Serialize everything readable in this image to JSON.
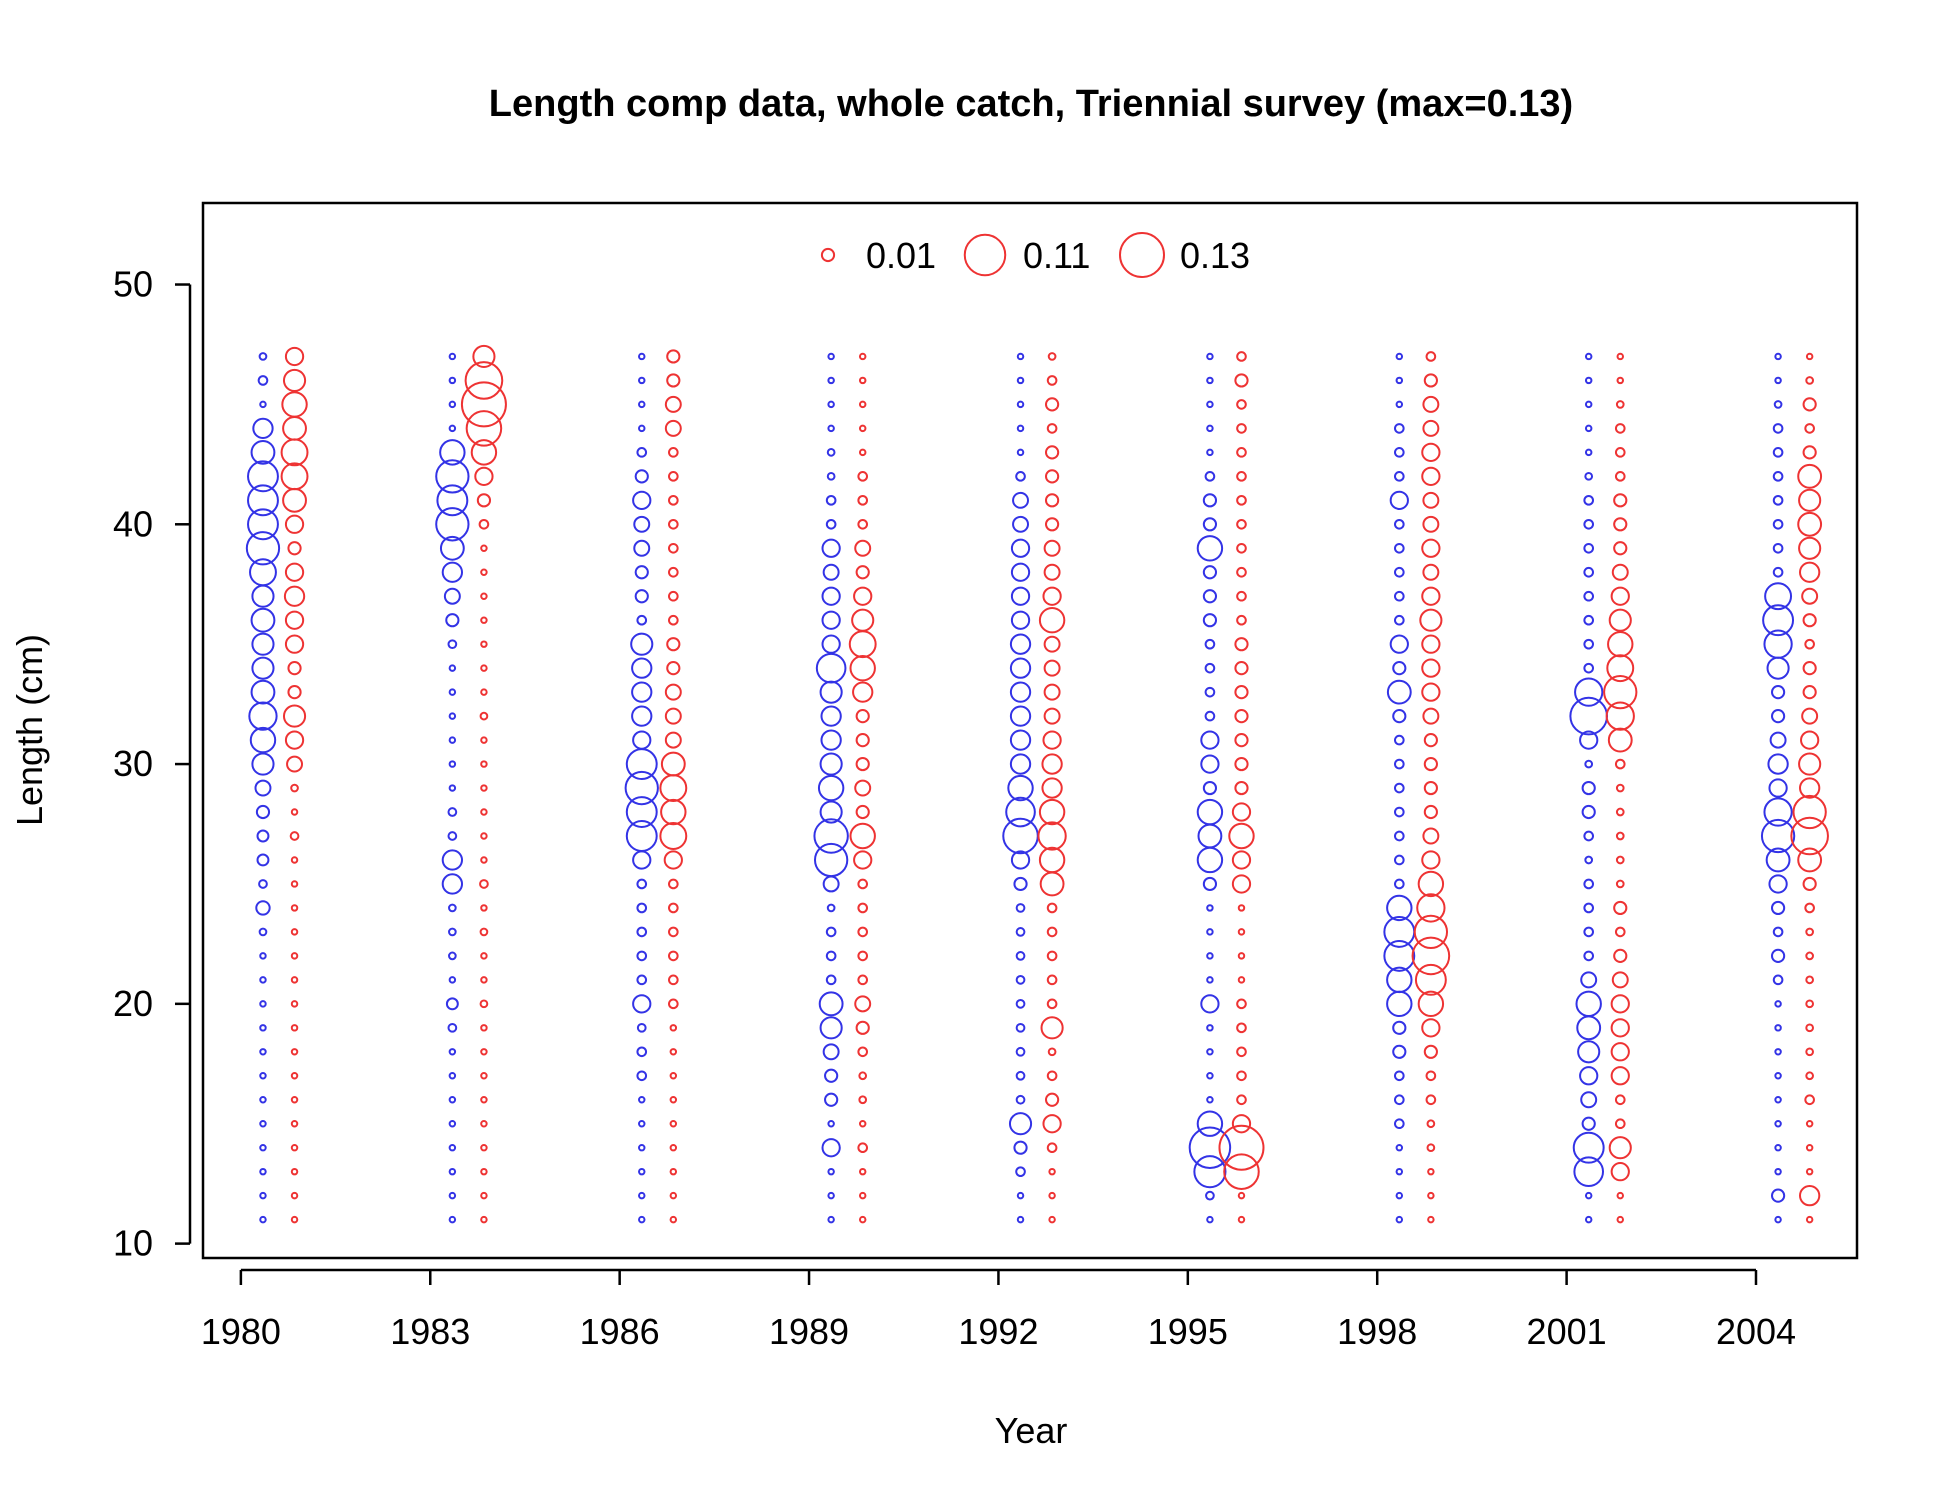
{
  "chart_data": {
    "type": "scatter",
    "subtype": "bubble",
    "title": "Length comp data, whole catch, Triennial survey (max=0.13)",
    "xlabel": "Year",
    "ylabel": "Length (cm)",
    "xlim": [
      1979.4,
      2005.6
    ],
    "ylim": [
      9.4,
      53.4
    ],
    "x_ticks": [
      "1980",
      "1983",
      "1986",
      "1989",
      "1992",
      "1995",
      "1998",
      "2001",
      "2004"
    ],
    "y_ticks": [
      "10",
      "20",
      "30",
      "40",
      "50"
    ],
    "grid": false,
    "legend_position": "top-center",
    "legend": [
      {
        "label": "0.01",
        "value": 0.01
      },
      {
        "label": "0.11",
        "value": 0.11
      },
      {
        "label": "0.13",
        "value": 0.13
      }
    ],
    "series_colors": [
      "#3333e6",
      "#ee3333"
    ],
    "lengths": [
      11,
      12,
      13,
      14,
      15,
      16,
      17,
      18,
      19,
      20,
      21,
      22,
      23,
      24,
      25,
      26,
      27,
      28,
      29,
      30,
      31,
      32,
      33,
      34,
      35,
      36,
      37,
      38,
      39,
      40,
      41,
      42,
      43,
      44,
      45,
      46,
      47
    ],
    "years": [
      1980,
      1983,
      1986,
      1989,
      1992,
      1995,
      1998,
      2001,
      2004
    ],
    "series": [
      {
        "x_offset": 0.35,
        "color": "#3333e6",
        "proportions": [
          [
            0.002,
            0.002,
            0.002,
            0.002,
            0.002,
            0.002,
            0.002,
            0.002,
            0.002,
            0.002,
            0.002,
            0.002,
            0.003,
            0.012,
            0.004,
            0.008,
            0.008,
            0.01,
            0.015,
            0.03,
            0.04,
            0.05,
            0.035,
            0.03,
            0.03,
            0.035,
            0.03,
            0.045,
            0.07,
            0.06,
            0.06,
            0.06,
            0.035,
            0.025,
            0.002,
            0.005,
            0.003
          ],
          [
            0.002,
            0.002,
            0.002,
            0.002,
            0.002,
            0.002,
            0.002,
            0.002,
            0.004,
            0.008,
            0.002,
            0.003,
            0.003,
            0.003,
            0.025,
            0.025,
            0.004,
            0.004,
            0.002,
            0.002,
            0.002,
            0.002,
            0.002,
            0.002,
            0.004,
            0.01,
            0.015,
            0.025,
            0.035,
            0.07,
            0.06,
            0.07,
            0.04,
            0.002,
            0.002,
            0.002,
            0.002
          ],
          [
            0.002,
            0.002,
            0.002,
            0.002,
            0.002,
            0.002,
            0.005,
            0.005,
            0.004,
            0.02,
            0.005,
            0.005,
            0.005,
            0.005,
            0.005,
            0.02,
            0.06,
            0.06,
            0.07,
            0.06,
            0.02,
            0.025,
            0.025,
            0.025,
            0.03,
            0.005,
            0.01,
            0.01,
            0.015,
            0.015,
            0.02,
            0.01,
            0.005,
            0.002,
            0.002,
            0.002,
            0.002
          ],
          [
            0.002,
            0.002,
            0.002,
            0.02,
            0.002,
            0.01,
            0.01,
            0.015,
            0.03,
            0.035,
            0.005,
            0.005,
            0.005,
            0.003,
            0.015,
            0.07,
            0.075,
            0.03,
            0.04,
            0.03,
            0.025,
            0.025,
            0.03,
            0.055,
            0.02,
            0.02,
            0.02,
            0.015,
            0.02,
            0.005,
            0.005,
            0.003,
            0.003,
            0.002,
            0.002,
            0.002,
            0.002
          ],
          [
            0.002,
            0.002,
            0.005,
            0.01,
            0.03,
            0.004,
            0.004,
            0.004,
            0.004,
            0.004,
            0.004,
            0.004,
            0.004,
            0.004,
            0.01,
            0.02,
            0.08,
            0.055,
            0.04,
            0.025,
            0.025,
            0.025,
            0.025,
            0.025,
            0.025,
            0.02,
            0.02,
            0.02,
            0.02,
            0.015,
            0.015,
            0.005,
            0.002,
            0.002,
            0.002,
            0.002,
            0.002
          ],
          [
            0.002,
            0.004,
            0.065,
            0.11,
            0.04,
            0.002,
            0.002,
            0.002,
            0.002,
            0.02,
            0.002,
            0.002,
            0.002,
            0.002,
            0.01,
            0.04,
            0.035,
            0.04,
            0.01,
            0.02,
            0.02,
            0.005,
            0.005,
            0.005,
            0.005,
            0.01,
            0.01,
            0.01,
            0.04,
            0.01,
            0.01,
            0.005,
            0.002,
            0.002,
            0.002,
            0.002,
            0.002
          ],
          [
            0.002,
            0.002,
            0.002,
            0.002,
            0.005,
            0.005,
            0.005,
            0.01,
            0.01,
            0.04,
            0.04,
            0.06,
            0.06,
            0.04,
            0.005,
            0.005,
            0.005,
            0.005,
            0.005,
            0.005,
            0.005,
            0.01,
            0.035,
            0.01,
            0.02,
            0.005,
            0.005,
            0.005,
            0.005,
            0.005,
            0.02,
            0.005,
            0.005,
            0.005,
            0.002,
            0.002,
            0.002
          ],
          [
            0.002,
            0.002,
            0.055,
            0.06,
            0.01,
            0.015,
            0.02,
            0.03,
            0.035,
            0.04,
            0.015,
            0.005,
            0.005,
            0.005,
            0.005,
            0.003,
            0.005,
            0.01,
            0.01,
            0.003,
            0.02,
            0.09,
            0.05,
            0.005,
            0.005,
            0.005,
            0.005,
            0.005,
            0.005,
            0.005,
            0.005,
            0.003,
            0.002,
            0.002,
            0.002,
            0.002,
            0.002
          ],
          [
            0.002,
            0.01,
            0.002,
            0.002,
            0.002,
            0.002,
            0.002,
            0.002,
            0.002,
            0.002,
            0.005,
            0.01,
            0.005,
            0.01,
            0.02,
            0.035,
            0.07,
            0.05,
            0.02,
            0.025,
            0.015,
            0.01,
            0.01,
            0.03,
            0.05,
            0.06,
            0.045,
            0.005,
            0.005,
            0.005,
            0.005,
            0.005,
            0.005,
            0.005,
            0.003,
            0.002,
            0.002
          ]
        ]
      },
      {
        "x_offset": 0.85,
        "color": "#ee3333",
        "proportions": [
          [
            0.002,
            0.002,
            0.002,
            0.002,
            0.002,
            0.002,
            0.002,
            0.002,
            0.002,
            0.002,
            0.002,
            0.002,
            0.002,
            0.002,
            0.002,
            0.002,
            0.004,
            0.002,
            0.003,
            0.015,
            0.02,
            0.03,
            0.01,
            0.01,
            0.02,
            0.02,
            0.025,
            0.02,
            0.01,
            0.02,
            0.035,
            0.045,
            0.045,
            0.035,
            0.04,
            0.03,
            0.02
          ],
          [
            0.002,
            0.002,
            0.002,
            0.002,
            0.002,
            0.002,
            0.002,
            0.002,
            0.002,
            0.003,
            0.002,
            0.002,
            0.003,
            0.002,
            0.004,
            0.002,
            0.002,
            0.002,
            0.002,
            0.002,
            0.002,
            0.003,
            0.002,
            0.002,
            0.002,
            0.002,
            0.002,
            0.002,
            0.002,
            0.005,
            0.01,
            0.02,
            0.04,
            0.08,
            0.13,
            0.09,
            0.03
          ],
          [
            0.002,
            0.002,
            0.002,
            0.002,
            0.002,
            0.002,
            0.002,
            0.002,
            0.002,
            0.005,
            0.005,
            0.005,
            0.005,
            0.005,
            0.005,
            0.02,
            0.045,
            0.04,
            0.045,
            0.035,
            0.015,
            0.015,
            0.015,
            0.01,
            0.01,
            0.005,
            0.005,
            0.005,
            0.005,
            0.005,
            0.005,
            0.005,
            0.005,
            0.015,
            0.015,
            0.01,
            0.01
          ],
          [
            0.002,
            0.002,
            0.002,
            0.005,
            0.002,
            0.003,
            0.003,
            0.005,
            0.01,
            0.015,
            0.005,
            0.005,
            0.005,
            0.005,
            0.005,
            0.02,
            0.04,
            0.01,
            0.015,
            0.01,
            0.01,
            0.01,
            0.025,
            0.04,
            0.045,
            0.03,
            0.02,
            0.01,
            0.015,
            0.005,
            0.005,
            0.005,
            0.002,
            0.002,
            0.002,
            0.002,
            0.002
          ],
          [
            0.002,
            0.002,
            0.002,
            0.005,
            0.02,
            0.01,
            0.005,
            0.003,
            0.03,
            0.005,
            0.005,
            0.005,
            0.005,
            0.005,
            0.035,
            0.04,
            0.05,
            0.04,
            0.025,
            0.025,
            0.02,
            0.015,
            0.015,
            0.015,
            0.015,
            0.04,
            0.02,
            0.015,
            0.015,
            0.01,
            0.01,
            0.01,
            0.01,
            0.005,
            0.01,
            0.005,
            0.003
          ],
          [
            0.002,
            0.002,
            0.08,
            0.13,
            0.02,
            0.005,
            0.005,
            0.005,
            0.005,
            0.005,
            0.002,
            0.002,
            0.002,
            0.002,
            0.02,
            0.02,
            0.04,
            0.02,
            0.01,
            0.01,
            0.01,
            0.01,
            0.01,
            0.01,
            0.01,
            0.005,
            0.005,
            0.005,
            0.005,
            0.005,
            0.005,
            0.005,
            0.005,
            0.005,
            0.005,
            0.01,
            0.005
          ],
          [
            0.002,
            0.002,
            0.002,
            0.003,
            0.003,
            0.005,
            0.005,
            0.01,
            0.02,
            0.04,
            0.06,
            0.09,
            0.07,
            0.05,
            0.04,
            0.02,
            0.015,
            0.01,
            0.01,
            0.01,
            0.01,
            0.015,
            0.02,
            0.02,
            0.02,
            0.03,
            0.02,
            0.015,
            0.02,
            0.015,
            0.015,
            0.02,
            0.02,
            0.015,
            0.015,
            0.01,
            0.005
          ],
          [
            0.002,
            0.002,
            0.02,
            0.03,
            0.005,
            0.005,
            0.02,
            0.02,
            0.02,
            0.02,
            0.015,
            0.01,
            0.005,
            0.01,
            0.003,
            0.003,
            0.003,
            0.003,
            0.003,
            0.005,
            0.035,
            0.05,
            0.07,
            0.045,
            0.04,
            0.03,
            0.02,
            0.015,
            0.01,
            0.01,
            0.01,
            0.005,
            0.005,
            0.005,
            0.003,
            0.002,
            0.002
          ],
          [
            0.002,
            0.025,
            0.002,
            0.002,
            0.002,
            0.005,
            0.003,
            0.003,
            0.003,
            0.003,
            0.003,
            0.003,
            0.003,
            0.005,
            0.01,
            0.035,
            0.09,
            0.07,
            0.025,
            0.03,
            0.02,
            0.015,
            0.01,
            0.01,
            0.005,
            0.01,
            0.015,
            0.025,
            0.03,
            0.035,
            0.03,
            0.035,
            0.01,
            0.005,
            0.01,
            0.003,
            0.002
          ]
        ]
      }
    ]
  }
}
